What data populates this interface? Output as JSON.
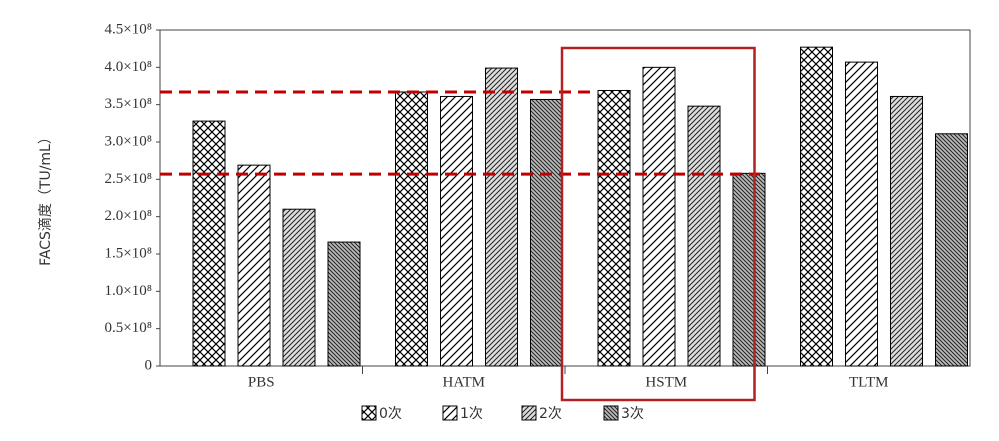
{
  "chart_data": {
    "type": "bar",
    "ylabel": "FACS滴度（TU/mL）",
    "categories": [
      "PBS",
      "HATM",
      "HSTM",
      "TLTM"
    ],
    "series": [
      {
        "name": "0次",
        "color": "#000000",
        "hatch": "cross",
        "values": [
          328000000,
          367000000,
          369000000,
          427000000
        ]
      },
      {
        "name": "1次",
        "color": "#000000",
        "hatch": "forward",
        "values": [
          269000000,
          361000000,
          400000000,
          407000000
        ]
      },
      {
        "name": "2次",
        "color": "#000000",
        "hatch": "forward-dense",
        "values": [
          210000000,
          399000000,
          348000000,
          361000000
        ]
      },
      {
        "name": "3次",
        "color": "#000000",
        "hatch": "back-dense",
        "values": [
          166000000,
          357000000,
          258000000,
          311000000
        ]
      }
    ],
    "ylim": [
      0,
      450000000
    ],
    "yticks": [
      0,
      {
        "value": 50000000,
        "label": "0.5×10⁸"
      },
      {
        "value": 100000000,
        "label": "1.0×10⁸"
      },
      {
        "value": 150000000,
        "label": "1.5×10⁸"
      },
      {
        "value": 200000000,
        "label": "2.0×10⁸"
      },
      {
        "value": 250000000,
        "label": "2.5×10⁸"
      },
      {
        "value": 300000000,
        "label": "3.0×10⁸"
      },
      {
        "value": 350000000,
        "label": "3.5×10⁸"
      },
      {
        "value": 400000000,
        "label": "4.0×10⁸"
      },
      {
        "value": 450000000,
        "label": "4.5×10⁸"
      }
    ],
    "reference_lines": [
      367000000,
      257000000
    ],
    "reference_color": "#c00000",
    "highlight": "HSTM",
    "highlight_color": "#b22222",
    "legend": "bottom"
  }
}
